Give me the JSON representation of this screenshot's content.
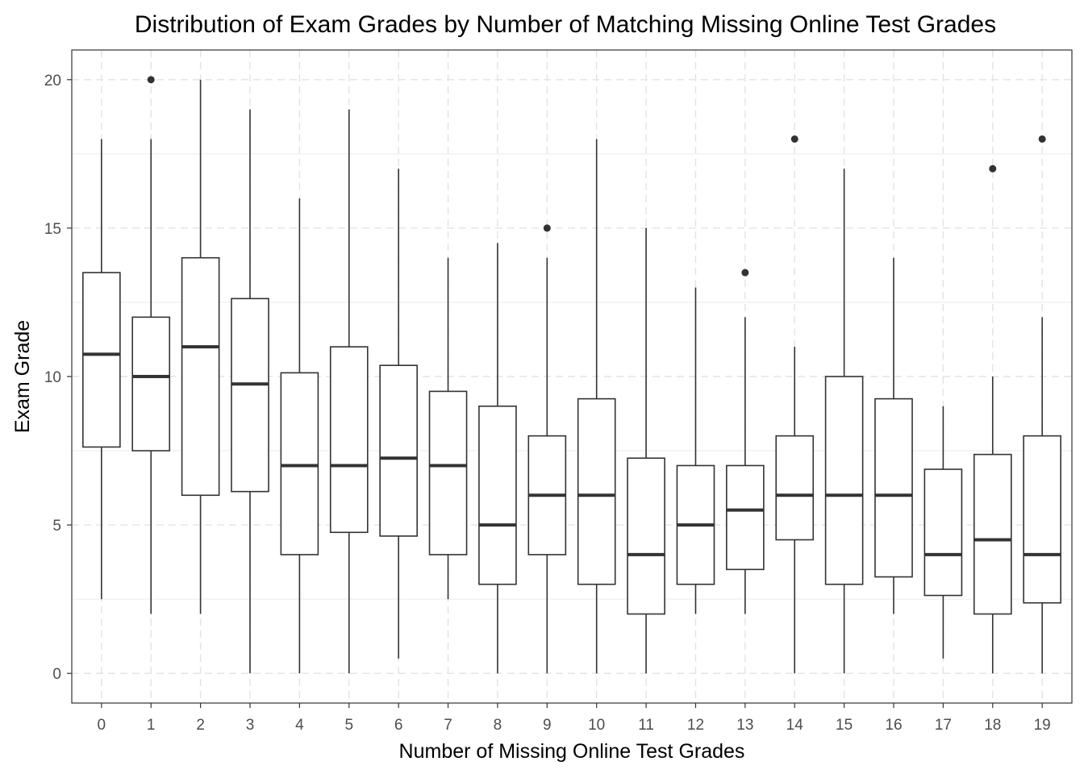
{
  "chart_data": {
    "type": "boxplot",
    "title": "Distribution of Exam Grades by Number of Matching Missing Online Test Grades",
    "xlabel": "Number of Missing Online Test Grades",
    "ylabel": "Exam Grade",
    "ylim": [
      -1,
      21
    ],
    "yticks": [
      0,
      5,
      10,
      15,
      20
    ],
    "grid": true,
    "legend": "none",
    "categories": [
      "0",
      "1",
      "2",
      "3",
      "4",
      "5",
      "6",
      "7",
      "8",
      "9",
      "10",
      "11",
      "12",
      "13",
      "14",
      "15",
      "16",
      "17",
      "18",
      "19"
    ],
    "boxes": [
      {
        "min": 2.5,
        "q1": 7.625,
        "median": 10.75,
        "q3": 13.5,
        "max": 18,
        "outliers": []
      },
      {
        "min": 2,
        "q1": 7.5,
        "median": 10,
        "q3": 12,
        "max": 18,
        "outliers": [
          20
        ]
      },
      {
        "min": 2,
        "q1": 6,
        "median": 11,
        "q3": 14,
        "max": 20,
        "outliers": []
      },
      {
        "min": 0,
        "q1": 6.125,
        "median": 9.75,
        "q3": 12.625,
        "max": 19,
        "outliers": []
      },
      {
        "min": 0,
        "q1": 4,
        "median": 7,
        "q3": 10.125,
        "max": 16,
        "outliers": []
      },
      {
        "min": 0,
        "q1": 4.75,
        "median": 7,
        "q3": 11,
        "max": 19,
        "outliers": []
      },
      {
        "min": 0.5,
        "q1": 4.625,
        "median": 7.25,
        "q3": 10.375,
        "max": 17,
        "outliers": []
      },
      {
        "min": 2.5,
        "q1": 4,
        "median": 7,
        "q3": 9.5,
        "max": 14,
        "outliers": []
      },
      {
        "min": 0,
        "q1": 3,
        "median": 5,
        "q3": 9,
        "max": 14.5,
        "outliers": []
      },
      {
        "min": 0,
        "q1": 4,
        "median": 6,
        "q3": 8,
        "max": 14,
        "outliers": [
          15
        ]
      },
      {
        "min": 0,
        "q1": 3,
        "median": 6,
        "q3": 9.25,
        "max": 18,
        "outliers": []
      },
      {
        "min": 0,
        "q1": 2,
        "median": 4,
        "q3": 7.25,
        "max": 15,
        "outliers": []
      },
      {
        "min": 2,
        "q1": 3,
        "median": 5,
        "q3": 7,
        "max": 13,
        "outliers": []
      },
      {
        "min": 2,
        "q1": 3.5,
        "median": 5.5,
        "q3": 7,
        "max": 12,
        "outliers": [
          13.5
        ]
      },
      {
        "min": 0,
        "q1": 4.5,
        "median": 6,
        "q3": 8,
        "max": 11,
        "outliers": [
          18
        ]
      },
      {
        "min": 0,
        "q1": 3,
        "median": 6,
        "q3": 10,
        "max": 17,
        "outliers": []
      },
      {
        "min": 2,
        "q1": 3.25,
        "median": 6,
        "q3": 9.25,
        "max": 14,
        "outliers": []
      },
      {
        "min": 0.5,
        "q1": 2.625,
        "median": 4,
        "q3": 6.875,
        "max": 9,
        "outliers": []
      },
      {
        "min": 0,
        "q1": 2,
        "median": 4.5,
        "q3": 7.375,
        "max": 10,
        "outliers": [
          17
        ]
      },
      {
        "min": 0,
        "q1": 2.375,
        "median": 4,
        "q3": 8,
        "max": 12,
        "outliers": [
          18
        ]
      }
    ]
  }
}
